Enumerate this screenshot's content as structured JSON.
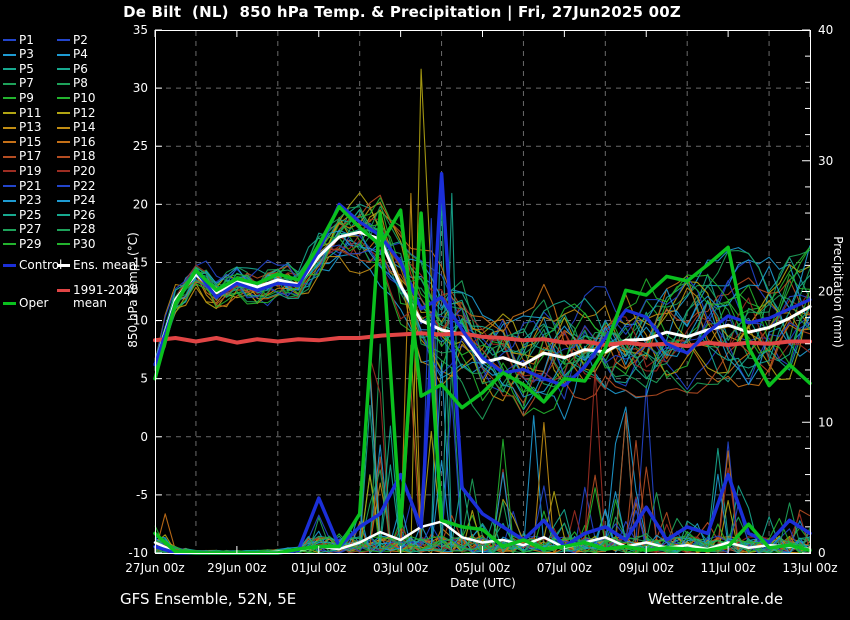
{
  "title": "De Bilt  (NL)  850 hPa Temp. & Precipitation | Fri, 27Jun2025 00Z",
  "footer": {
    "left": "GFS Ensemble, 52N, 5E",
    "right": "Wetterzentrale.de"
  },
  "axes": {
    "y_left": {
      "label": "850 hPa Temp. (°C)",
      "min": -10,
      "max": 35,
      "ticks": [
        35,
        30,
        25,
        20,
        15,
        10,
        5,
        0,
        -5,
        -10
      ],
      "gridline_values": [
        30,
        25,
        20,
        15,
        10,
        5,
        0,
        -5
      ]
    },
    "y_right": {
      "label": "Precipitation (mm)",
      "min": 0,
      "max": 40,
      "ticks": [
        40,
        30,
        20,
        10,
        0
      ],
      "minor_step": 2
    },
    "x": {
      "label": "Date (UTC)",
      "days_total": 16,
      "ticks": [
        {
          "day": 0,
          "label": "27Jun 00z"
        },
        {
          "day": 2,
          "label": "29Jun 00z"
        },
        {
          "day": 4,
          "label": "01Jul 00z"
        },
        {
          "day": 6,
          "label": "03Jul 00z"
        },
        {
          "day": 8,
          "label": "05Jul 00z"
        },
        {
          "day": 10,
          "label": "07Jul 00z"
        },
        {
          "day": 12,
          "label": "09Jul 00z"
        },
        {
          "day": 14,
          "label": "11Jul 00z"
        },
        {
          "day": 16,
          "label": "13Jul 00z"
        }
      ],
      "gridline_days": [
        1,
        3,
        5,
        7,
        9,
        11,
        13,
        15
      ]
    }
  },
  "legend": {
    "member_labels": [
      "P1",
      "P2",
      "P3",
      "P4",
      "P5",
      "P6",
      "P7",
      "P8",
      "P9",
      "P10",
      "P11",
      "P12",
      "P13",
      "P14",
      "P15",
      "P16",
      "P17",
      "P18",
      "P19",
      "P20",
      "P21",
      "P22",
      "P23",
      "P24",
      "P25",
      "P26",
      "P27",
      "P28",
      "P29",
      "P30"
    ],
    "member_colors": [
      "#2345cb",
      "#2345cb",
      "#1e9bd2",
      "#1e9bd2",
      "#17a98f",
      "#17a98f",
      "#1ea25a",
      "#1ea25a",
      "#23b32e",
      "#23b32e",
      "#b2a513",
      "#b2a513",
      "#c18d13",
      "#c18d13",
      "#c57017",
      "#c57017",
      "#b54d22",
      "#b54d22",
      "#9d2d22",
      "#9d2d22",
      "#2345cb",
      "#2345cb",
      "#1e9bd2",
      "#1e9bd2",
      "#17a98f",
      "#17a98f",
      "#1ea25a",
      "#1ea25a",
      "#23b32e",
      "#23b32e"
    ],
    "control": {
      "label": "Control",
      "color": "#1b2fd8"
    },
    "ens_mean": {
      "label": "Ens. mean",
      "color": "#ffffff"
    },
    "clim": {
      "label_line1": "1991-2020",
      "label_line2": "mean",
      "color": "#e04545"
    },
    "oper": {
      "label": "Oper",
      "color": "#0ac01e"
    }
  },
  "chart_data": {
    "type": "line",
    "x_start": "27Jun2025 00UTC",
    "x_step_hours": 12,
    "x_days": 16,
    "temp_ylim": [
      -10,
      35
    ],
    "precip_ylim": [
      0,
      40
    ],
    "grid": "dashed-gray",
    "series": [
      {
        "name": "Ens. mean temp",
        "color": "#ffffff",
        "width": 3,
        "values": [
          6.2,
          11.8,
          14.0,
          12.4,
          13.4,
          12.9,
          13.5,
          13.1,
          15.5,
          17.2,
          17.6,
          17.0,
          13.0,
          10.0,
          9.2,
          8.8,
          6.4,
          6.8,
          6.2,
          7.2,
          6.8,
          7.5,
          7.3,
          8.3,
          8.4,
          9.0,
          8.6,
          9.2,
          9.6,
          9.0,
          9.4,
          10.2,
          11.2
        ]
      },
      {
        "name": "Control temp",
        "color": "#1b2fd8",
        "width": 3.2,
        "values": [
          6.2,
          11.5,
          14.3,
          12.0,
          13.2,
          12.6,
          13.2,
          13.0,
          16.0,
          20.0,
          18.5,
          17.3,
          15.0,
          11.0,
          12.0,
          9.2,
          6.8,
          5.5,
          5.8,
          5.0,
          4.4,
          6.0,
          8.5,
          10.9,
          10.3,
          8.0,
          7.2,
          9.0,
          10.4,
          9.8,
          10.2,
          11.0,
          11.8
        ]
      },
      {
        "name": "Oper temp",
        "color": "#0ac01e",
        "width": 3.5,
        "values": [
          5.0,
          11.5,
          14.3,
          12.6,
          13.6,
          13.2,
          14.0,
          13.5,
          16.5,
          19.8,
          18.0,
          16.5,
          19.5,
          3.5,
          4.5,
          2.5,
          3.8,
          5.5,
          4.5,
          3.0,
          5.0,
          4.8,
          7.6,
          12.6,
          12.2,
          13.8,
          13.4,
          14.8,
          16.3,
          7.7,
          4.4,
          6.2,
          4.6
        ]
      },
      {
        "name": "1991-2020 mean temp",
        "color": "#e04545",
        "width": 4,
        "values": [
          8.3,
          8.5,
          8.2,
          8.5,
          8.1,
          8.4,
          8.2,
          8.4,
          8.3,
          8.5,
          8.5,
          8.7,
          8.8,
          8.9,
          8.8,
          8.9,
          8.6,
          8.5,
          8.3,
          8.4,
          8.1,
          8.2,
          7.9,
          8.1,
          7.9,
          8.0,
          7.8,
          8.1,
          7.9,
          8.1,
          8.0,
          8.2,
          8.2
        ]
      }
    ],
    "precip_series": [
      {
        "name": "Ens. mean precip",
        "color": "#ffffff",
        "width": 2.5,
        "values": [
          0.8,
          0.1,
          0,
          0,
          0,
          0,
          0.1,
          0.2,
          0.5,
          0.3,
          0.8,
          1.6,
          1.0,
          2.0,
          2.4,
          1.2,
          0.8,
          1.0,
          0.6,
          1.2,
          0.4,
          0.8,
          1.2,
          0.5,
          0.8,
          0.4,
          0.6,
          0.3,
          0.8,
          0.4,
          0.6,
          0.5,
          0.3
        ]
      },
      {
        "name": "Control precip",
        "color": "#1b2fd8",
        "width": 3.5,
        "values": [
          0.5,
          0,
          0,
          0,
          0,
          0,
          0,
          0.2,
          4.2,
          0.5,
          2.0,
          3.0,
          6.0,
          2.0,
          29,
          5.0,
          3.0,
          2.0,
          1.0,
          2.5,
          0.5,
          1.5,
          2.0,
          1.0,
          3.5,
          1.0,
          2.0,
          1.5,
          6.0,
          1.5,
          0.8,
          2.5,
          1.5
        ]
      },
      {
        "name": "Oper precip",
        "color": "#0ac01e",
        "width": 3.5,
        "values": [
          1.5,
          0.1,
          0,
          0,
          0,
          0,
          0,
          0.3,
          0.5,
          0.5,
          3.0,
          26,
          2.0,
          26,
          2.5,
          2.0,
          1.8,
          0.5,
          1.0,
          0.3,
          0.5,
          0.8,
          0.3,
          0.5,
          0.2,
          0.4,
          0.3,
          0.2,
          0.5,
          2.2,
          0.4,
          0.6,
          0.2
        ]
      }
    ],
    "ensemble_envelope": {
      "temp_min": [
        5.0,
        9.5,
        12.5,
        10.5,
        11.5,
        11.0,
        11.8,
        11.5,
        13.5,
        15.5,
        13.0,
        10.0,
        6.5,
        3.5,
        3.0,
        2.0,
        1.5,
        2.0,
        1.8,
        2.0,
        1.5,
        2.5,
        3.0,
        4.0,
        3.5,
        4.0,
        3.8,
        4.5,
        4.0,
        4.5,
        4.0,
        4.5,
        4.5
      ],
      "temp_max": [
        7.0,
        13.5,
        15.8,
        14.2,
        15.2,
        14.8,
        15.5,
        15.0,
        18.5,
        21.2,
        21.7,
        21.0,
        19.5,
        18.0,
        16.0,
        14.0,
        13.0,
        13.5,
        14.0,
        15.0,
        14.5,
        15.5,
        16.0,
        17.0,
        17.5,
        18.0,
        18.0,
        19.0,
        19.5,
        20.0,
        20.5,
        21.0,
        22.0
      ],
      "precip_max": [
        3,
        0.5,
        0.2,
        0.2,
        0.2,
        0.2,
        0.3,
        0.5,
        4.3,
        1.5,
        4,
        26,
        8,
        27,
        29,
        9,
        6,
        9,
        5,
        10,
        4,
        11,
        4,
        14,
        13,
        5,
        3,
        5,
        9,
        4,
        3.5,
        4,
        3
      ]
    },
    "member_count": 30,
    "member_precip_events": [
      {
        "member_index": 14,
        "six_hour_index": 1,
        "mm": 3
      },
      {
        "member_index": 13,
        "six_hour_index": 25,
        "mm": 27.5
      },
      {
        "member_index": 11,
        "six_hour_index": 26,
        "mm": 37
      },
      {
        "member_index": 11,
        "six_hour_index": 27,
        "mm": 21
      },
      {
        "member_index": 4,
        "six_hour_index": 28,
        "mm": 27
      },
      {
        "member_index": 24,
        "six_hour_index": 29,
        "mm": 27.5
      },
      {
        "member_index": 2,
        "six_hour_index": 37,
        "mm": 10.5
      },
      {
        "member_index": 18,
        "six_hour_index": 43,
        "mm": 14
      },
      {
        "member_index": 0,
        "six_hour_index": 48,
        "mm": 12.8
      },
      {
        "member_index": 5,
        "six_hour_index": 55,
        "mm": 8
      }
    ]
  },
  "colors": {
    "background": "#000000",
    "text": "#ffffff",
    "plot_border": "#ffffff",
    "gridline": "#6a6a6a"
  }
}
